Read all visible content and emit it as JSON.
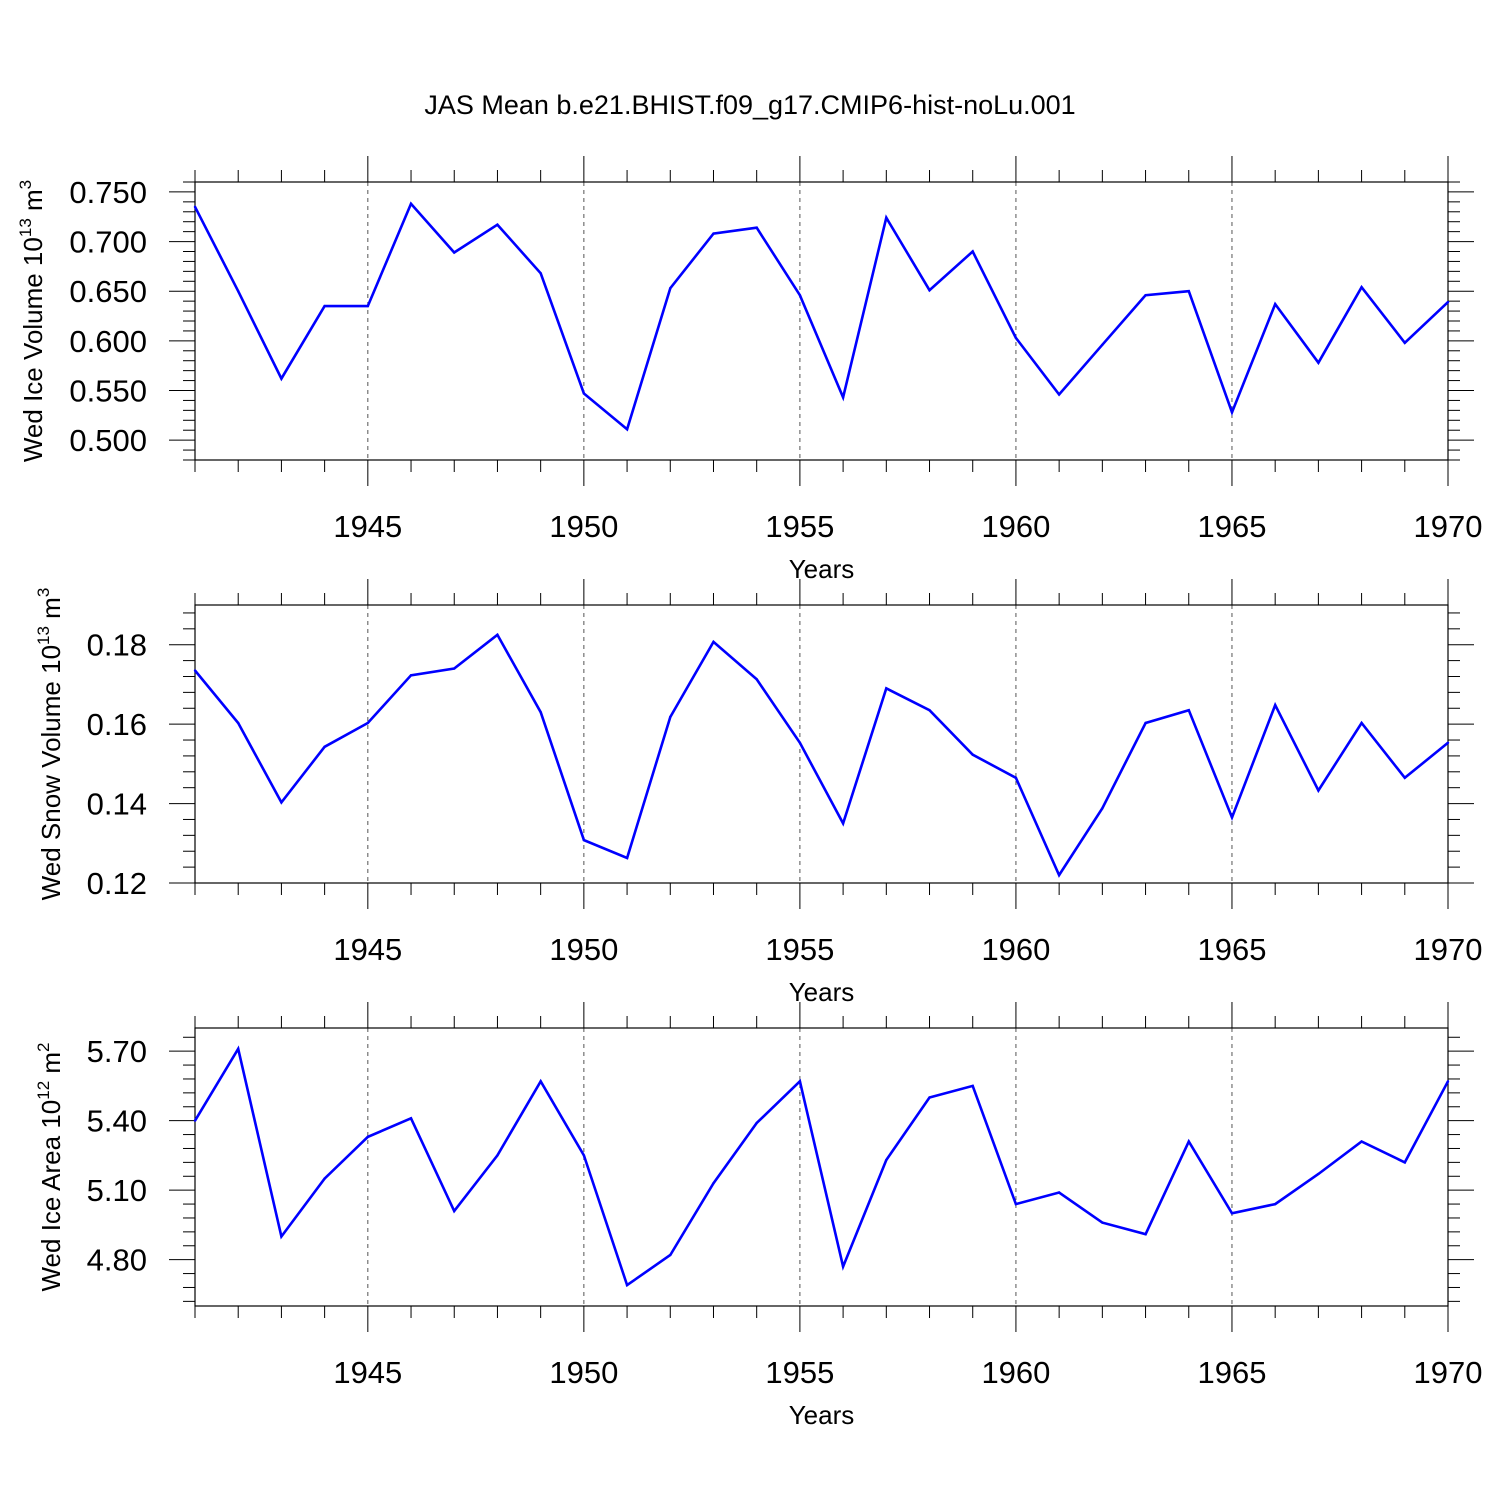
{
  "page_title": "JAS Mean b.e21.BHIST.f09_g17.CMIP6-hist-noLu.001",
  "colors": {
    "line": "#0000ff",
    "axis": "#000000",
    "grid": "#555555",
    "background": "#ffffff"
  },
  "chart_data": [
    {
      "type": "line",
      "title": "JAS Mean b.e21.BHIST.f09_g17.CMIP6-hist-noLu.001",
      "ylabel_main": "Wed Ice Volume 10",
      "ylabel_exp": "13",
      "ylabel_unit": "m",
      "ylabel_unit_exp": "3",
      "xlabel": "Years",
      "xlim": [
        1941,
        1970
      ],
      "ylim": [
        0.48,
        0.76
      ],
      "yticks": [
        0.5,
        0.55,
        0.6,
        0.65,
        0.7,
        0.75
      ],
      "ytick_labels": [
        "0.500",
        "0.550",
        "0.600",
        "0.650",
        "0.700",
        "0.750"
      ],
      "xticks": [
        1945,
        1950,
        1955,
        1960,
        1965,
        1970
      ],
      "xtick_labels": [
        "1945",
        "1950",
        "1955",
        "1960",
        "1965",
        "1970"
      ],
      "x": [
        1941,
        1942,
        1943,
        1944,
        1945,
        1946,
        1947,
        1948,
        1949,
        1950,
        1951,
        1952,
        1953,
        1954,
        1955,
        1956,
        1957,
        1958,
        1959,
        1960,
        1961,
        1962,
        1963,
        1964,
        1965,
        1966,
        1967,
        1968,
        1969,
        1970
      ],
      "values": [
        0.735,
        0.65,
        0.562,
        0.635,
        0.635,
        0.738,
        0.689,
        0.717,
        0.668,
        0.547,
        0.511,
        0.653,
        0.708,
        0.714,
        0.646,
        0.543,
        0.724,
        0.651,
        0.69,
        0.603,
        0.546,
        0.596,
        0.646,
        0.65,
        0.528,
        0.637,
        0.578,
        0.654,
        0.598,
        0.639
      ]
    },
    {
      "type": "line",
      "ylabel_main": "Wed Snow Volume 10",
      "ylabel_exp": "13",
      "ylabel_unit": "m",
      "ylabel_unit_exp": "3",
      "xlabel": "Years",
      "xlim": [
        1941,
        1970
      ],
      "ylim": [
        0.12,
        0.19
      ],
      "yticks": [
        0.12,
        0.14,
        0.16,
        0.18
      ],
      "ytick_labels": [
        "0.12",
        "0.14",
        "0.16",
        "0.18"
      ],
      "xticks": [
        1945,
        1950,
        1955,
        1960,
        1965,
        1970
      ],
      "xtick_labels": [
        "1945",
        "1950",
        "1955",
        "1960",
        "1965",
        "1970"
      ],
      "x": [
        1941,
        1942,
        1943,
        1944,
        1945,
        1946,
        1947,
        1948,
        1949,
        1950,
        1951,
        1952,
        1953,
        1954,
        1955,
        1956,
        1957,
        1958,
        1959,
        1960,
        1961,
        1962,
        1963,
        1964,
        1965,
        1966,
        1967,
        1968,
        1969,
        1970
      ],
      "values": [
        0.1735,
        0.1603,
        0.1403,
        0.1543,
        0.1603,
        0.1723,
        0.174,
        0.1825,
        0.163,
        0.1308,
        0.1263,
        0.1618,
        0.1807,
        0.1713,
        0.1553,
        0.135,
        0.169,
        0.1635,
        0.1523,
        0.1465,
        0.122,
        0.1388,
        0.1603,
        0.1635,
        0.1365,
        0.1648,
        0.1433,
        0.1603,
        0.1465,
        0.1553
      ]
    },
    {
      "type": "line",
      "ylabel_main": "Wed Ice Area 10",
      "ylabel_exp": "12",
      "ylabel_unit": "m",
      "ylabel_unit_exp": "2",
      "xlabel": "Years",
      "xlim": [
        1941,
        1970
      ],
      "ylim": [
        4.6,
        5.8
      ],
      "yticks": [
        4.8,
        5.1,
        5.4,
        5.7
      ],
      "ytick_labels": [
        "4.80",
        "5.10",
        "5.40",
        "5.70"
      ],
      "xticks": [
        1945,
        1950,
        1955,
        1960,
        1965,
        1970
      ],
      "xtick_labels": [
        "1945",
        "1950",
        "1955",
        "1960",
        "1965",
        "1970"
      ],
      "x": [
        1941,
        1942,
        1943,
        1944,
        1945,
        1946,
        1947,
        1948,
        1949,
        1950,
        1951,
        1952,
        1953,
        1954,
        1955,
        1956,
        1957,
        1958,
        1959,
        1960,
        1961,
        1962,
        1963,
        1964,
        1965,
        1966,
        1967,
        1968,
        1969,
        1970
      ],
      "values": [
        5.4,
        5.71,
        4.9,
        5.15,
        5.33,
        5.41,
        5.01,
        5.25,
        5.57,
        5.25,
        4.69,
        4.82,
        5.13,
        5.39,
        5.57,
        4.77,
        5.23,
        5.5,
        5.55,
        5.04,
        5.09,
        4.96,
        4.91,
        5.31,
        5.0,
        5.04,
        5.17,
        5.31,
        5.22,
        5.57
      ]
    }
  ]
}
